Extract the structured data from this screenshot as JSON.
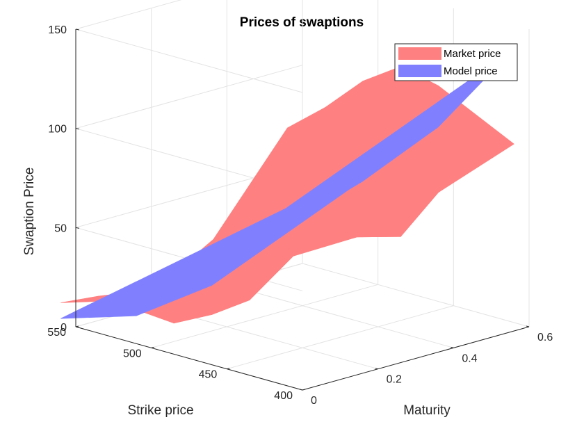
{
  "chart_data": {
    "type": "surface",
    "title": "Prices of swaptions",
    "xlabel": "Strike price",
    "ylabel": "Maturity",
    "zlabel": "Swaption Price",
    "xlim": [
      400,
      550
    ],
    "ylim": [
      0,
      0.6
    ],
    "zlim": [
      0,
      150
    ],
    "x_ticks": [
      400,
      450,
      500,
      550
    ],
    "y_ticks": [
      0,
      0.2,
      0.4,
      0.6
    ],
    "z_ticks": [
      0,
      50,
      100,
      150
    ],
    "grid": true,
    "legend_position": "top-right",
    "series": [
      {
        "name": "Market price",
        "color": "#ff8080",
        "strike_grid": [
          410,
          460,
          510,
          560
        ],
        "maturity_grid": [
          0,
          0.1,
          0.2,
          0.3,
          0.4,
          0.5,
          0.6
        ],
        "values": [
          [
            130,
            135,
            143,
            145,
            130,
            110,
            90
          ],
          [
            62,
            63,
            65,
            55,
            44,
            38,
            55
          ],
          [
            22,
            5,
            4,
            6,
            22,
            27,
            34
          ],
          [
            10,
            8,
            5,
            9,
            20,
            30,
            43
          ]
        ]
      },
      {
        "name": "Model price",
        "color": "#8080ff",
        "strike_grid": [
          410,
          460,
          510,
          560
        ],
        "maturity_grid": [
          0,
          0.1,
          0.2,
          0.3,
          0.4,
          0.5,
          0.6
        ],
        "values": [
          [
            90,
            98,
            106,
            114,
            122,
            130,
            138
          ],
          [
            40,
            48,
            56,
            64,
            72,
            80,
            88
          ],
          [
            14,
            20,
            26,
            32,
            38,
            44,
            50
          ],
          [
            2,
            6,
            10,
            14,
            18,
            22,
            26
          ]
        ]
      }
    ]
  }
}
